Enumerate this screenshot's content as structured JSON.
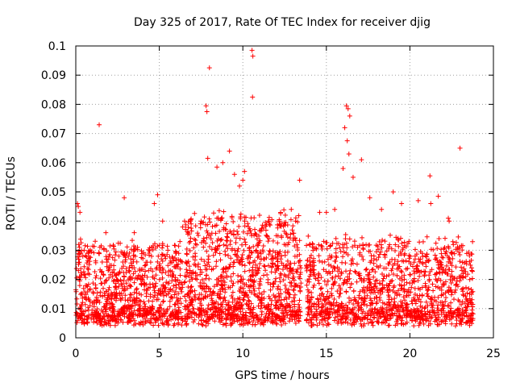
{
  "chart_data": {
    "type": "scatter",
    "title": "Day 325 of 2017, Rate Of TEC Index for receiver djig",
    "xlabel": "GPS time / hours",
    "ylabel": "ROTI / TECUs",
    "xlim": [
      0,
      25
    ],
    "ylim": [
      0,
      0.1
    ],
    "x_ticks": [
      0,
      5,
      10,
      15,
      20,
      25
    ],
    "y_ticks": [
      0,
      0.01,
      0.02,
      0.03,
      0.04,
      0.05,
      0.06,
      0.07,
      0.08,
      0.09,
      0.1
    ],
    "x_tick_labels": [
      "0",
      "5",
      "10",
      "15",
      "20",
      "25"
    ],
    "y_tick_labels": [
      "0",
      "0.01",
      "0.02",
      "0.03",
      "0.04",
      "0.05",
      "0.06",
      "0.07",
      "0.08",
      "0.09",
      "0.1"
    ],
    "grid": true,
    "marker": "plus",
    "marker_color": "#ff0000",
    "series": [
      {
        "x": [
          0.1,
          0.15,
          0.25,
          0.3,
          1.4,
          2.9,
          8.0,
          7.8,
          7.85,
          10.55,
          10.6,
          10.58,
          8.45,
          7.9,
          16.2,
          16.3,
          16.4,
          16.1,
          16.35,
          16.25,
          23.0,
          21.2,
          21.25,
          22.3,
          22.35,
          21.7,
          3.5,
          4.7,
          4.9,
          6.4,
          7.5,
          9.5,
          10.0,
          9.8,
          12.9,
          13.4,
          15.0,
          17.1,
          17.6,
          18.3,
          19.0,
          19.5,
          20.5,
          1.8,
          0.5,
          5.2,
          10.1,
          11.0,
          14.6,
          16.6,
          16.0,
          15.5,
          12.0,
          9.2,
          8.8
        ],
        "y": [
          0.046,
          0.045,
          0.043,
          0.029,
          0.073,
          0.048,
          0.0925,
          0.0795,
          0.0775,
          0.0985,
          0.0965,
          0.0825,
          0.0585,
          0.0615,
          0.0795,
          0.0785,
          0.076,
          0.072,
          0.063,
          0.0675,
          0.065,
          0.0555,
          0.046,
          0.041,
          0.04,
          0.0485,
          0.036,
          0.046,
          0.049,
          0.038,
          0.04,
          0.056,
          0.054,
          0.052,
          0.044,
          0.054,
          0.043,
          0.061,
          0.048,
          0.044,
          0.05,
          0.046,
          0.047,
          0.036,
          0.03,
          0.04,
          0.057,
          0.042,
          0.043,
          0.055,
          0.058,
          0.044,
          0.035,
          0.064,
          0.06
        ]
      }
    ],
    "density_bands": [
      {
        "x_start": 0.0,
        "x_end": 6.4,
        "y_low": 0.004,
        "y_high": 0.03,
        "points": 900
      },
      {
        "x_start": 6.5,
        "x_end": 13.5,
        "y_low": 0.004,
        "y_high": 0.04,
        "points": 1100
      },
      {
        "x_start": 13.8,
        "x_end": 23.8,
        "y_low": 0.004,
        "y_high": 0.032,
        "points": 1300
      }
    ]
  }
}
